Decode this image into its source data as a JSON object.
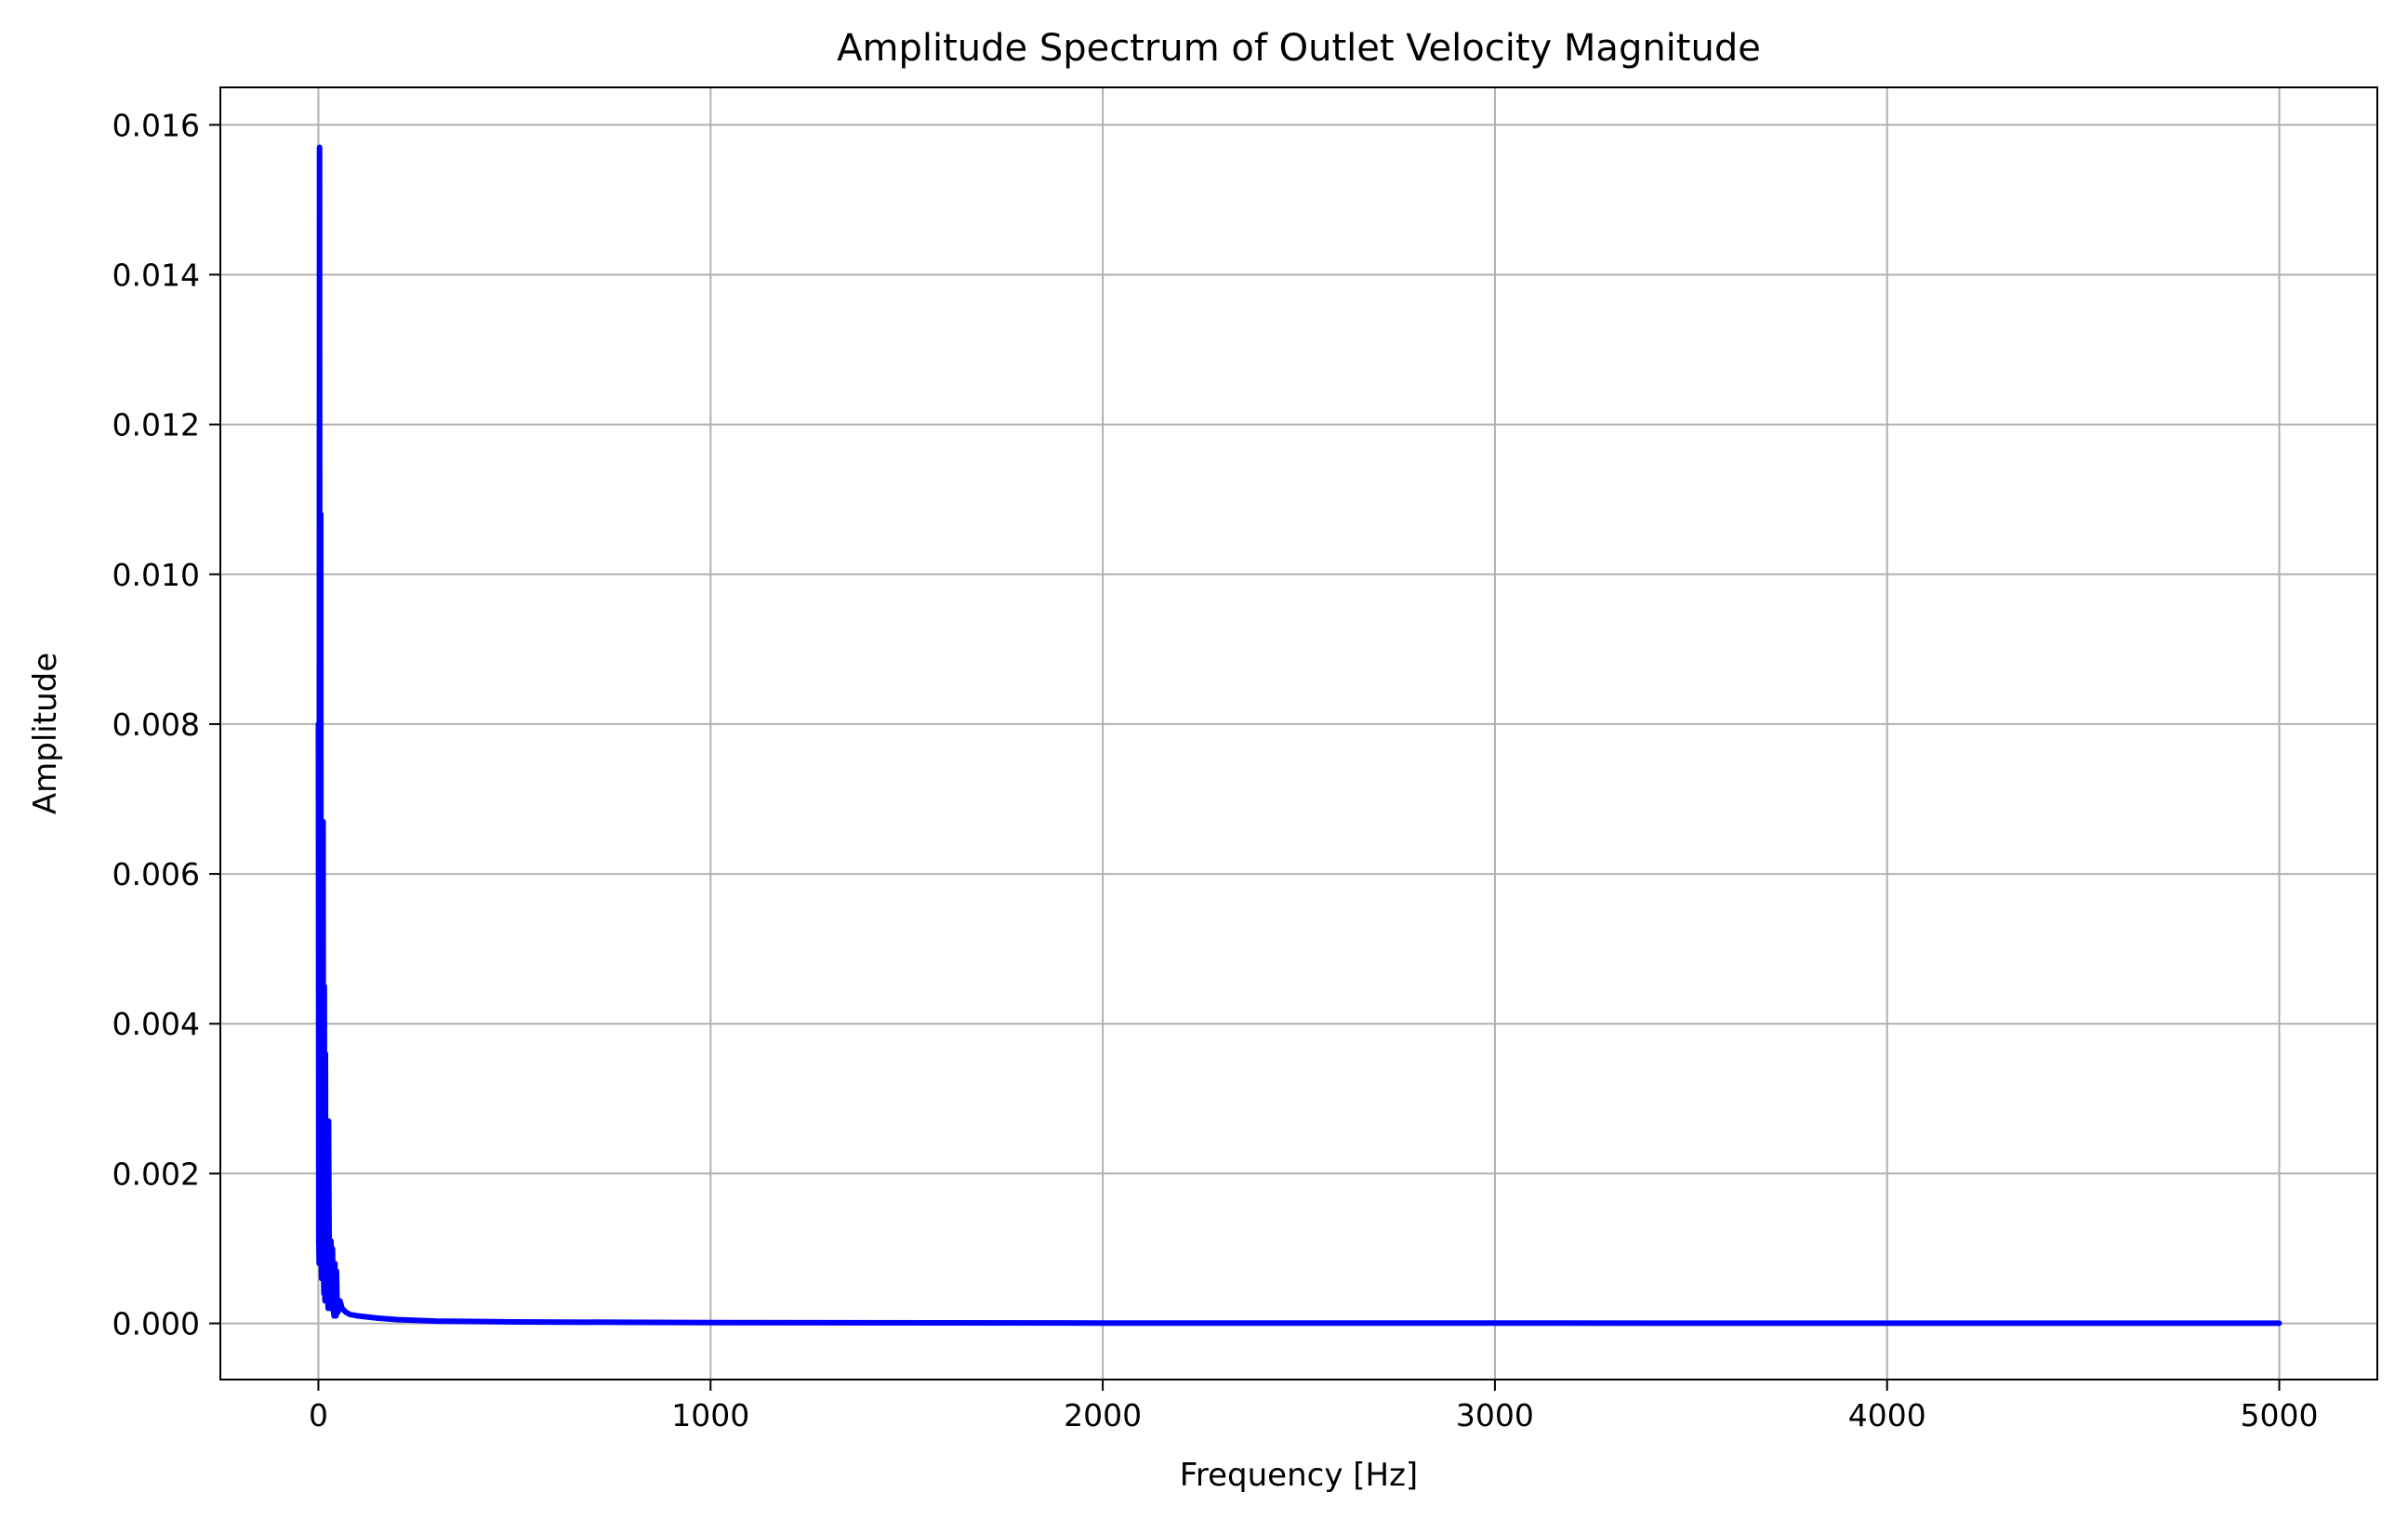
{
  "chart_data": {
    "type": "line",
    "title": "Amplitude Spectrum of Outlet Velocity Magnitude",
    "xlabel": "Frequency [Hz]",
    "ylabel": "Amplitude",
    "xlim": [
      -250,
      5250
    ],
    "ylim": [
      -0.00075,
      0.0165
    ],
    "x_ticks": [
      0,
      1000,
      2000,
      3000,
      4000,
      5000
    ],
    "x_tick_labels": [
      "0",
      "1000",
      "2000",
      "3000",
      "4000",
      "5000"
    ],
    "y_ticks": [
      0.0,
      0.002,
      0.004,
      0.006,
      0.008,
      0.01,
      0.012,
      0.014,
      0.016
    ],
    "y_tick_labels": [
      "0.000",
      "0.002",
      "0.004",
      "0.006",
      "0.008",
      "0.010",
      "0.012",
      "0.014",
      "0.016"
    ],
    "grid": true,
    "line_color": "#0000ff",
    "grid_color": "#b0b0b0",
    "series": [
      {
        "x": [
          0,
          1,
          2,
          3,
          4,
          5,
          6,
          7,
          8,
          9,
          10,
          11,
          12,
          13,
          14,
          15,
          16,
          17,
          18,
          19,
          20,
          22,
          24,
          25,
          26,
          28,
          30,
          32,
          34,
          35,
          36,
          38,
          40,
          42,
          44,
          45,
          46,
          48,
          50,
          55,
          60,
          70,
          80,
          100,
          150,
          200,
          300,
          500,
          1000,
          2000,
          3000,
          4000,
          5000
        ],
        "values": [
          0.008,
          0.0011,
          0.0008,
          0.0157,
          0.002,
          0.0009,
          0.0108,
          0.0013,
          0.0006,
          0.0067,
          0.001,
          0.0006,
          0.0067,
          0.0008,
          0.0004,
          0.0045,
          0.0007,
          0.0003,
          0.0036,
          0.0006,
          0.0003,
          0.0027,
          0.0004,
          0.0002,
          0.0027,
          0.0004,
          0.0002,
          0.0011,
          0.0003,
          0.0002,
          0.001,
          0.0002,
          0.0001,
          0.0008,
          0.00015,
          0.0001,
          0.0007,
          0.0002,
          0.00015,
          0.0003,
          0.0002,
          0.00015,
          0.00012,
          0.0001,
          7e-05,
          5e-05,
          3e-05,
          2e-05,
          1e-05,
          5e-06,
          3e-06,
          2e-06,
          2e-06
        ]
      }
    ]
  }
}
